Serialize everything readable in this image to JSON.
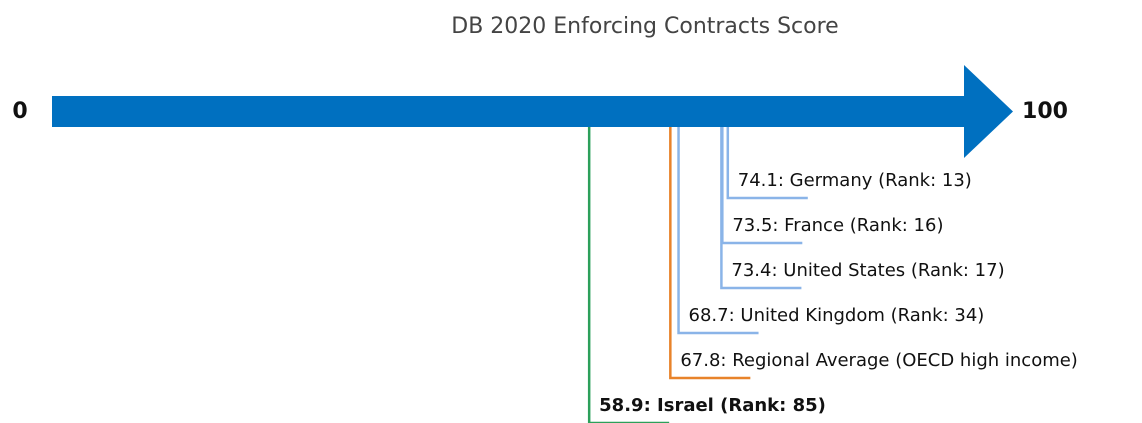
{
  "chart_data": {
    "type": "scale-markers",
    "title": "DB 2020 Enforcing Contracts Score",
    "xlim": [
      0,
      100
    ],
    "xticks": [
      0,
      100
    ],
    "arrow_color": "#0070c0",
    "values": [
      74.1,
      73.5,
      73.4,
      68.7,
      67.8,
      58.9
    ],
    "value_labels": [
      "74.1: Germany (Rank: 13)",
      "73.5: France (Rank: 16)",
      "73.4: United States (Rank: 17)",
      "68.7: United Kingdom (Rank: 34)",
      "67.8: Regional Average (OECD high income)",
      "58.9: Israel (Rank: 85)"
    ],
    "colors": [
      "#8ab4e8",
      "#8ab4e8",
      "#8ab4e8",
      "#8ab4e8",
      "#e8832a",
      "#2ca05a"
    ],
    "bold": [
      false,
      false,
      false,
      false,
      false,
      true
    ]
  }
}
